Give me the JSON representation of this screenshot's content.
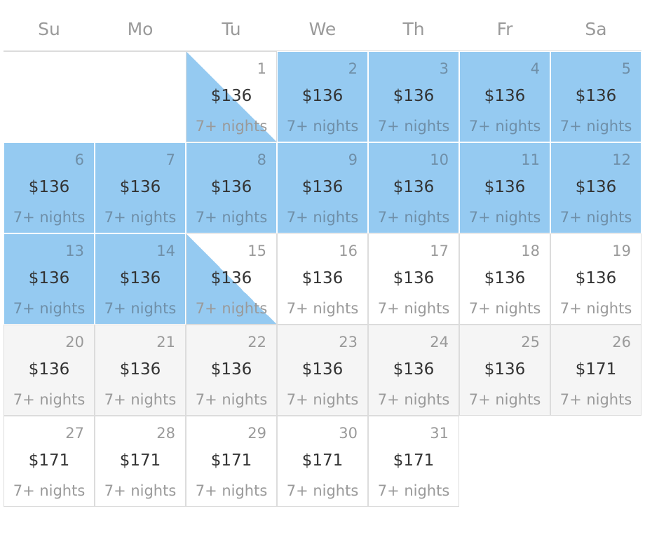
{
  "weekdays": [
    "Su",
    "Mo",
    "Tu",
    "We",
    "Th",
    "Fr",
    "Sa"
  ],
  "colors": {
    "selected": "#95caf1",
    "disabled_bg": "#f5f5f5",
    "border": "#dcdcdc",
    "text_primary": "#333333",
    "text_muted": "#9a9a9a"
  },
  "first_weekday_index": 2,
  "days": [
    {
      "day": "1",
      "price": "$136",
      "nights": "7+ nights",
      "state": "range-start"
    },
    {
      "day": "2",
      "price": "$136",
      "nights": "7+ nights",
      "state": "selected"
    },
    {
      "day": "3",
      "price": "$136",
      "nights": "7+ nights",
      "state": "selected"
    },
    {
      "day": "4",
      "price": "$136",
      "nights": "7+ nights",
      "state": "selected"
    },
    {
      "day": "5",
      "price": "$136",
      "nights": "7+ nights",
      "state": "selected"
    },
    {
      "day": "6",
      "price": "$136",
      "nights": "7+ nights",
      "state": "selected"
    },
    {
      "day": "7",
      "price": "$136",
      "nights": "7+ nights",
      "state": "selected"
    },
    {
      "day": "8",
      "price": "$136",
      "nights": "7+ nights",
      "state": "selected"
    },
    {
      "day": "9",
      "price": "$136",
      "nights": "7+ nights",
      "state": "selected"
    },
    {
      "day": "10",
      "price": "$136",
      "nights": "7+ nights",
      "state": "selected"
    },
    {
      "day": "11",
      "price": "$136",
      "nights": "7+ nights",
      "state": "selected"
    },
    {
      "day": "12",
      "price": "$136",
      "nights": "7+ nights",
      "state": "selected"
    },
    {
      "day": "13",
      "price": "$136",
      "nights": "7+ nights",
      "state": "selected"
    },
    {
      "day": "14",
      "price": "$136",
      "nights": "7+ nights",
      "state": "selected"
    },
    {
      "day": "15",
      "price": "$136",
      "nights": "7+ nights",
      "state": "range-end"
    },
    {
      "day": "16",
      "price": "$136",
      "nights": "7+ nights",
      "state": "available"
    },
    {
      "day": "17",
      "price": "$136",
      "nights": "7+ nights",
      "state": "available"
    },
    {
      "day": "18",
      "price": "$136",
      "nights": "7+ nights",
      "state": "available"
    },
    {
      "day": "19",
      "price": "$136",
      "nights": "7+ nights",
      "state": "available"
    },
    {
      "day": "20",
      "price": "$136",
      "nights": "7+ nights",
      "state": "shaded"
    },
    {
      "day": "21",
      "price": "$136",
      "nights": "7+ nights",
      "state": "shaded"
    },
    {
      "day": "22",
      "price": "$136",
      "nights": "7+ nights",
      "state": "shaded"
    },
    {
      "day": "23",
      "price": "$136",
      "nights": "7+ nights",
      "state": "shaded"
    },
    {
      "day": "24",
      "price": "$136",
      "nights": "7+ nights",
      "state": "shaded"
    },
    {
      "day": "25",
      "price": "$136",
      "nights": "7+ nights",
      "state": "shaded"
    },
    {
      "day": "26",
      "price": "$171",
      "nights": "7+ nights",
      "state": "shaded"
    },
    {
      "day": "27",
      "price": "$171",
      "nights": "7+ nights",
      "state": "available"
    },
    {
      "day": "28",
      "price": "$171",
      "nights": "7+ nights",
      "state": "available"
    },
    {
      "day": "29",
      "price": "$171",
      "nights": "7+ nights",
      "state": "available"
    },
    {
      "day": "30",
      "price": "$171",
      "nights": "7+ nights",
      "state": "available"
    },
    {
      "day": "31",
      "price": "$171",
      "nights": "7+ nights",
      "state": "available"
    }
  ]
}
